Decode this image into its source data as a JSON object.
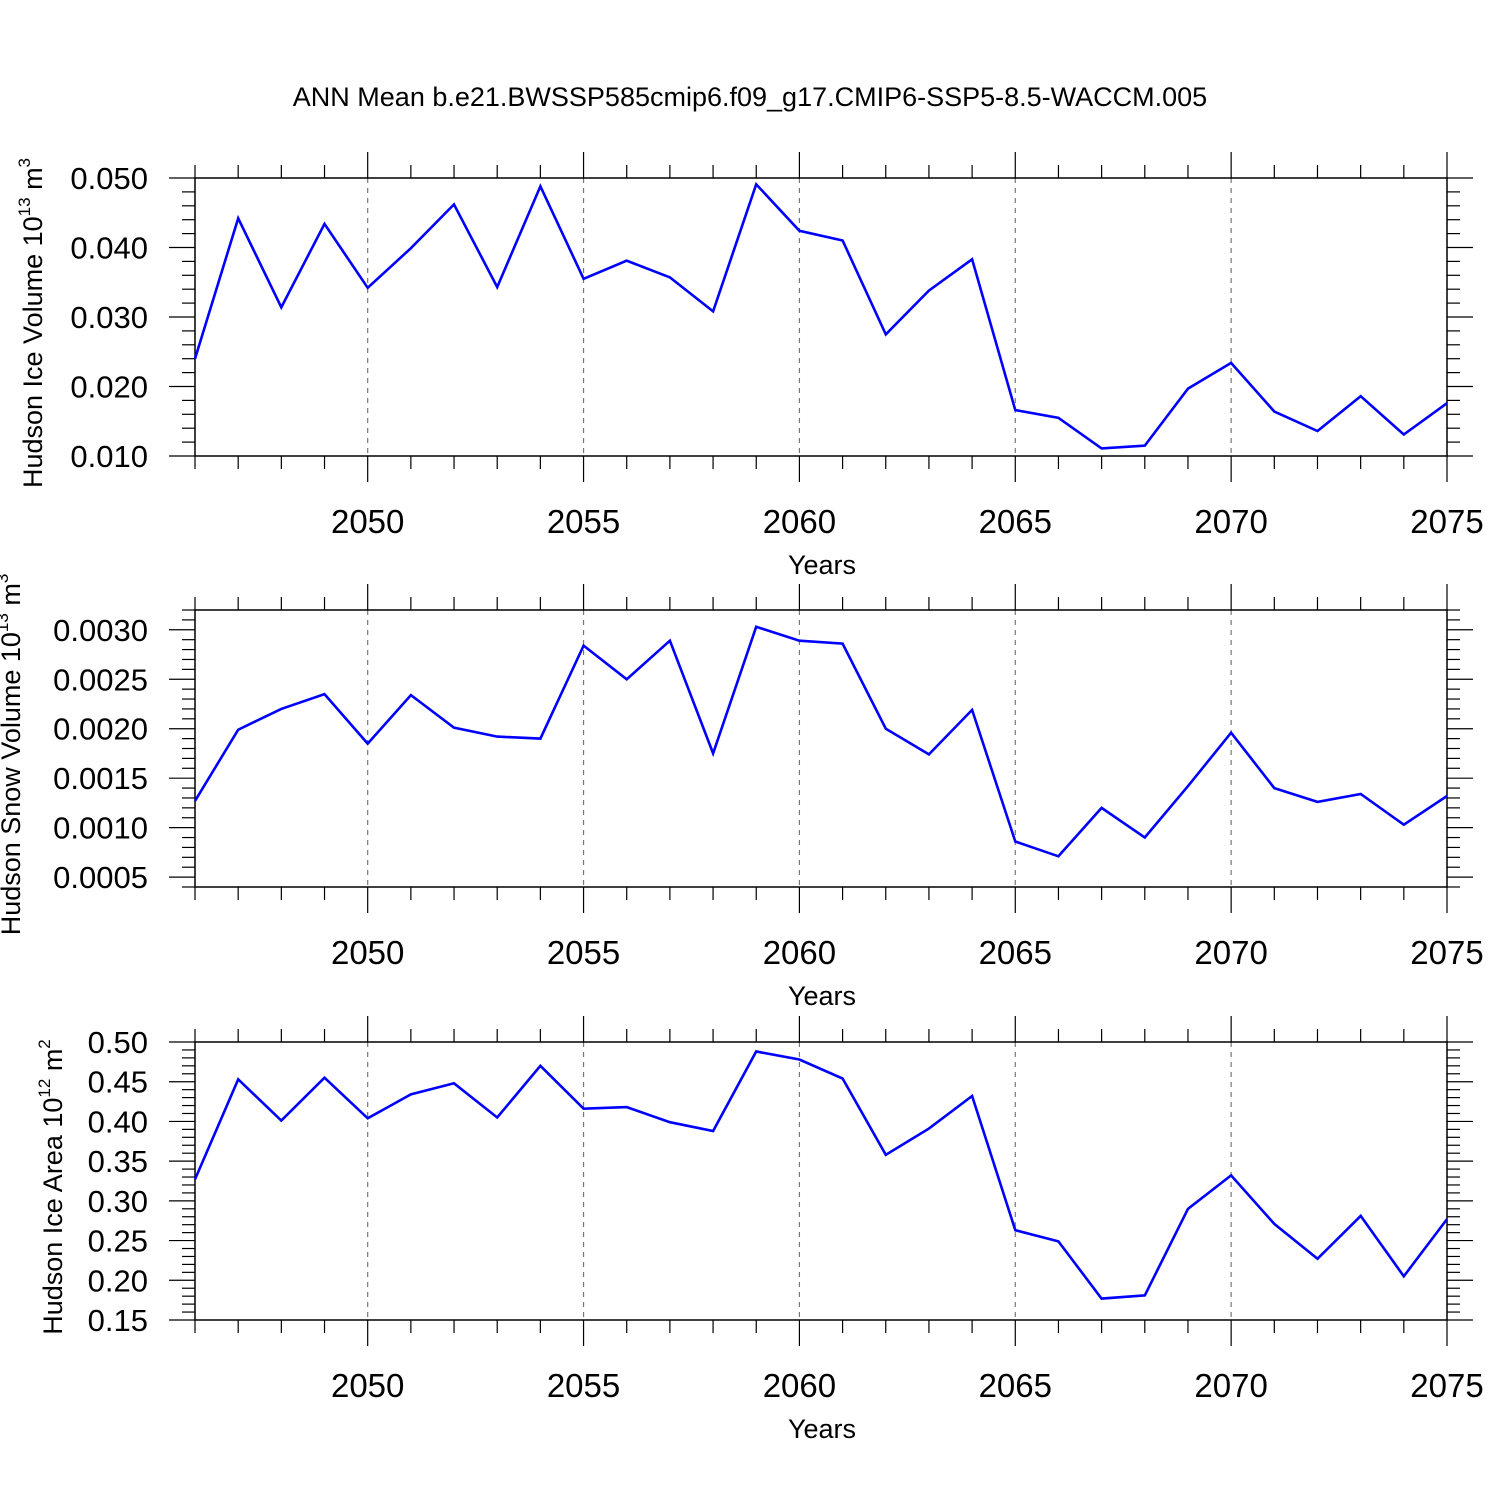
{
  "title": "ANN Mean b.e21.BWSSP585cmip6.f09_g17.CMIP6-SSP5-8.5-WACCM.005",
  "line_color": "#0000ff",
  "chart_data": [
    {
      "type": "line",
      "ylabel": "Hudson Ice Volume 10",
      "ylabel_exp": "13",
      "ylabel_unit": " m",
      "ylabel_unit_exp": "3",
      "xlabel": "Years",
      "xlim": [
        2046,
        2075
      ],
      "ylim": [
        0.01,
        0.05
      ],
      "yticks": [
        0.01,
        0.02,
        0.03,
        0.04,
        0.05
      ],
      "ytick_labels": [
        "0.010",
        "0.020",
        "0.030",
        "0.040",
        "0.050"
      ],
      "xticks": [
        2050,
        2055,
        2060,
        2065,
        2070,
        2075
      ],
      "xtick_labels": [
        "2050",
        "2055",
        "2060",
        "2065",
        "2070",
        "2075"
      ],
      "grid": "vertical dashed at major x ticks",
      "x": [
        2046,
        2047,
        2048,
        2049,
        2050,
        2051,
        2052,
        2053,
        2054,
        2055,
        2056,
        2057,
        2058,
        2059,
        2060,
        2061,
        2062,
        2063,
        2064,
        2065,
        2066,
        2067,
        2068,
        2069,
        2070,
        2071,
        2072,
        2073,
        2074,
        2075
      ],
      "values": [
        0.024,
        0.0442,
        0.0314,
        0.0434,
        0.0342,
        0.0399,
        0.0462,
        0.0343,
        0.0488,
        0.0355,
        0.0381,
        0.0357,
        0.0308,
        0.0491,
        0.0424,
        0.041,
        0.0275,
        0.0338,
        0.0383,
        0.0166,
        0.0155,
        0.0111,
        0.0115,
        0.0197,
        0.0234,
        0.0164,
        0.0136,
        0.0186,
        0.0131,
        0.0176
      ]
    },
    {
      "type": "line",
      "ylabel": "Hudson Snow Volume 10",
      "ylabel_exp": "13",
      "ylabel_unit": " m",
      "ylabel_unit_exp": "3",
      "xlabel": "Years",
      "xlim": [
        2046,
        2075
      ],
      "ylim": [
        0.0004,
        0.0032
      ],
      "yticks": [
        0.0005,
        0.001,
        0.0015,
        0.002,
        0.0025,
        0.003
      ],
      "ytick_labels": [
        "0.0005",
        "0.0010",
        "0.0015",
        "0.0020",
        "0.0025",
        "0.0030"
      ],
      "xticks": [
        2050,
        2055,
        2060,
        2065,
        2070,
        2075
      ],
      "xtick_labels": [
        "2050",
        "2055",
        "2060",
        "2065",
        "2070",
        "2075"
      ],
      "grid": "vertical dashed at major x ticks",
      "x": [
        2046,
        2047,
        2048,
        2049,
        2050,
        2051,
        2052,
        2053,
        2054,
        2055,
        2056,
        2057,
        2058,
        2059,
        2060,
        2061,
        2062,
        2063,
        2064,
        2065,
        2066,
        2067,
        2068,
        2069,
        2070,
        2071,
        2072,
        2073,
        2074,
        2075
      ],
      "values": [
        0.00127,
        0.00199,
        0.0022,
        0.00235,
        0.00185,
        0.00234,
        0.00201,
        0.00192,
        0.0019,
        0.00284,
        0.0025,
        0.00289,
        0.00175,
        0.00303,
        0.00289,
        0.00286,
        0.002,
        0.00174,
        0.00219,
        0.00086,
        0.00071,
        0.0012,
        0.0009,
        0.00142,
        0.00196,
        0.0014,
        0.00126,
        0.00134,
        0.00103,
        0.00132
      ]
    },
    {
      "type": "line",
      "ylabel": "Hudson Ice Area 10",
      "ylabel_exp": "12",
      "ylabel_unit": " m",
      "ylabel_unit_exp": "2",
      "xlabel": "Years",
      "xlim": [
        2046,
        2075
      ],
      "ylim": [
        0.15,
        0.5
      ],
      "yticks": [
        0.15,
        0.2,
        0.25,
        0.3,
        0.35,
        0.4,
        0.45,
        0.5
      ],
      "ytick_labels": [
        "0.15",
        "0.20",
        "0.25",
        "0.30",
        "0.35",
        "0.40",
        "0.45",
        "0.50"
      ],
      "xticks": [
        2050,
        2055,
        2060,
        2065,
        2070,
        2075
      ],
      "xtick_labels": [
        "2050",
        "2055",
        "2060",
        "2065",
        "2070",
        "2075"
      ],
      "grid": "vertical dashed at major x ticks",
      "x": [
        2046,
        2047,
        2048,
        2049,
        2050,
        2051,
        2052,
        2053,
        2054,
        2055,
        2056,
        2057,
        2058,
        2059,
        2060,
        2061,
        2062,
        2063,
        2064,
        2065,
        2066,
        2067,
        2068,
        2069,
        2070,
        2071,
        2072,
        2073,
        2074,
        2075
      ],
      "values": [
        0.327,
        0.453,
        0.401,
        0.455,
        0.404,
        0.434,
        0.448,
        0.405,
        0.47,
        0.416,
        0.418,
        0.399,
        0.388,
        0.488,
        0.478,
        0.454,
        0.358,
        0.391,
        0.432,
        0.263,
        0.249,
        0.177,
        0.181,
        0.29,
        0.332,
        0.271,
        0.227,
        0.281,
        0.205,
        0.277
      ]
    }
  ]
}
